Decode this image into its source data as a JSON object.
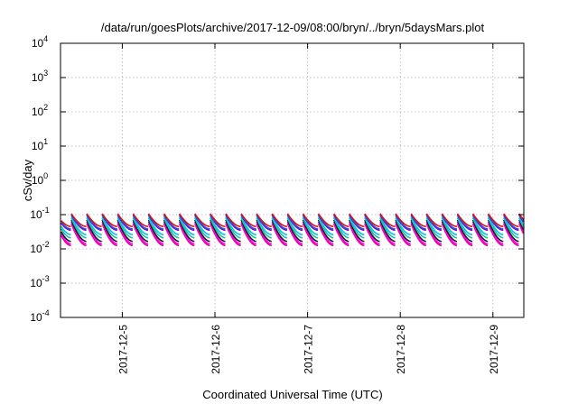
{
  "chart_data": {
    "type": "line",
    "title": "/data/run/goesPlots/archive/2017-12-09/08:00/bryn/../bryn/5daysMars.plot",
    "xlabel": "Coordinated Universal Time (UTC)",
    "ylabel": "cSv/day",
    "yscale": "log",
    "ylim": [
      0.0001,
      10000
    ],
    "xlim": [
      "2017-12-04 08:00",
      "2017-12-09 08:00"
    ],
    "grid": true,
    "y_ticks": [
      {
        "value": 0.0001,
        "base": "10",
        "exp": "-4"
      },
      {
        "value": 0.001,
        "base": "10",
        "exp": "-3"
      },
      {
        "value": 0.01,
        "base": "10",
        "exp": "-2"
      },
      {
        "value": 0.1,
        "base": "10",
        "exp": "-1"
      },
      {
        "value": 1,
        "base": "10",
        "exp": "0"
      },
      {
        "value": 10,
        "base": "10",
        "exp": "1"
      },
      {
        "value": 100,
        "base": "10",
        "exp": "2"
      },
      {
        "value": 1000,
        "base": "10",
        "exp": "3"
      },
      {
        "value": 10000,
        "base": "10",
        "exp": "4"
      }
    ],
    "x_ticks": [
      {
        "date": "2017-12-05 00:00",
        "label": "2017-12-5"
      },
      {
        "date": "2017-12-06 00:00",
        "label": "2017-12-6"
      },
      {
        "date": "2017-12-07 00:00",
        "label": "2017-12-7"
      },
      {
        "date": "2017-12-08 00:00",
        "label": "2017-12-8"
      },
      {
        "date": "2017-12-09 00:00",
        "label": "2017-12-9"
      }
    ],
    "cycle_hours": 4,
    "series": [
      {
        "color": "#e8008a",
        "peak": 0.055,
        "low": 0.0125
      },
      {
        "color": "#ff00ff",
        "peak": 0.062,
        "low": 0.014
      },
      {
        "color": "#1a1a1a",
        "peak": 0.07,
        "low": 0.0165
      },
      {
        "color": "#20c0a0",
        "peak": 0.08,
        "low": 0.021
      },
      {
        "color": "#00c8e8",
        "peak": 0.088,
        "low": 0.026
      },
      {
        "color": "#9000d0",
        "peak": 0.098,
        "low": 0.035
      },
      {
        "color": "#2050e0",
        "peak": 0.102,
        "low": 0.038
      },
      {
        "color": "#e01010",
        "peak": 0.107,
        "low": 0.045
      }
    ]
  }
}
